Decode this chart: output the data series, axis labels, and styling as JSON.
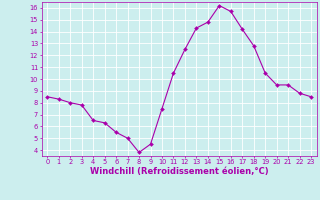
{
  "x": [
    0,
    1,
    2,
    3,
    4,
    5,
    6,
    7,
    8,
    9,
    10,
    11,
    12,
    13,
    14,
    15,
    16,
    17,
    18,
    19,
    20,
    21,
    22,
    23
  ],
  "y": [
    8.5,
    8.3,
    8.0,
    7.8,
    6.5,
    6.3,
    5.5,
    5.0,
    3.8,
    4.5,
    7.5,
    10.5,
    12.5,
    14.3,
    14.8,
    16.2,
    15.7,
    14.2,
    12.8,
    10.5,
    9.5,
    9.5,
    8.8,
    8.5
  ],
  "line_color": "#aa00aa",
  "marker_color": "#aa00aa",
  "bg_color": "#cceeee",
  "grid_color": "#ffffff",
  "xlabel": "Windchill (Refroidissement éolien,°C)",
  "xlabel_color": "#aa00aa",
  "ylim": [
    3.5,
    16.5
  ],
  "xlim": [
    -0.5,
    23.5
  ],
  "yticks": [
    4,
    5,
    6,
    7,
    8,
    9,
    10,
    11,
    12,
    13,
    14,
    15,
    16
  ],
  "xticks": [
    0,
    1,
    2,
    3,
    4,
    5,
    6,
    7,
    8,
    9,
    10,
    11,
    12,
    13,
    14,
    15,
    16,
    17,
    18,
    19,
    20,
    21,
    22,
    23
  ],
  "tick_color": "#aa00aa",
  "tick_fontsize": 4.8,
  "xlabel_fontsize": 6.0,
  "linewidth": 0.8,
  "markersize": 2.0
}
